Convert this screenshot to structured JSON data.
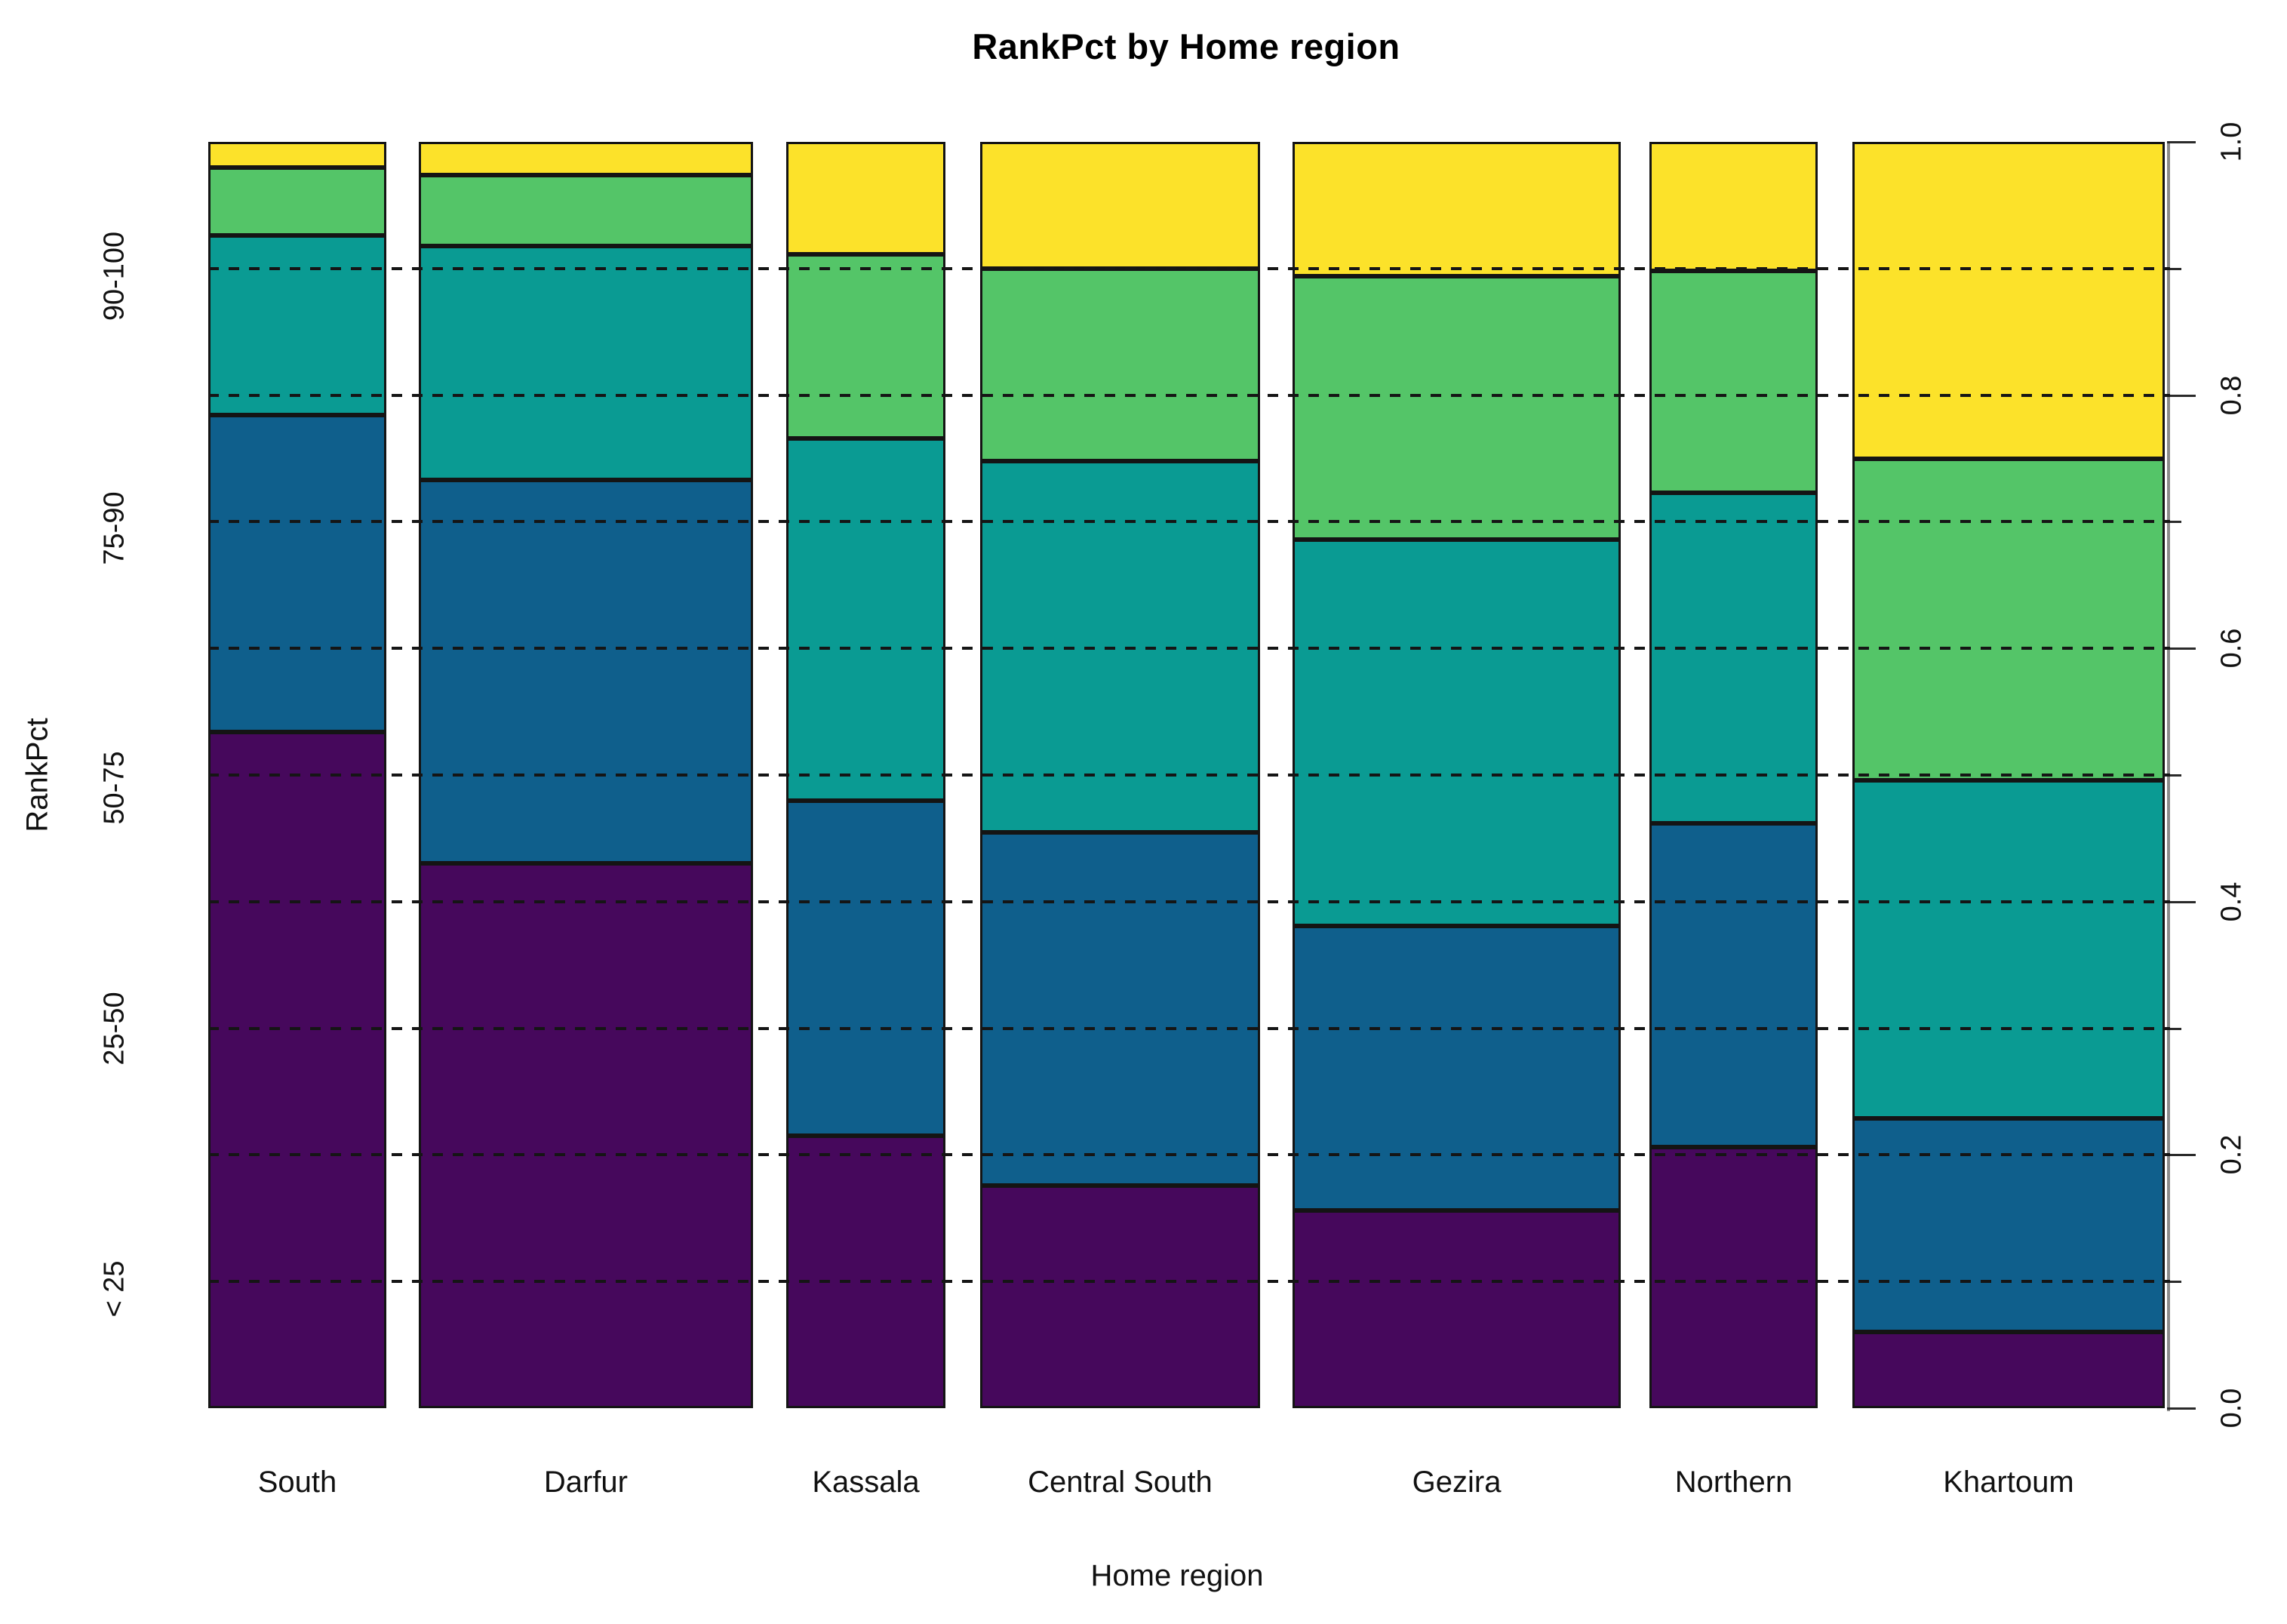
{
  "title": "RankPct by Home region",
  "x_axis_label": "Home region",
  "y_axis_label": "RankPct",
  "chart_data": {
    "type": "bar",
    "subtype": "spineplot-stacked-proportion",
    "title": "RankPct by Home region",
    "xlabel": "Home region",
    "ylabel": "RankPct",
    "ylim": [
      0.0,
      1.0
    ],
    "grid": "dashed horizontal lines every 0.1, drawn over bars",
    "legend_position": "none",
    "x_categories": [
      "South",
      "Darfur",
      "Kassala",
      "Central South",
      "Gezira",
      "Northern",
      "Khartoum"
    ],
    "stack_categories": [
      "< 25",
      "25-50",
      "50-75",
      "75-90",
      "90-100"
    ],
    "stack_colors": [
      "#46085C",
      "#0F5F8C",
      "#0A9B93",
      "#54C568",
      "#FCE22A"
    ],
    "bars": [
      {
        "region": "South",
        "left_pct": 0.0,
        "width_pct": 9.1,
        "segments": [
          0.534,
          0.25,
          0.142,
          0.054,
          0.02
        ]
      },
      {
        "region": "Darfur",
        "left_pct": 10.76,
        "width_pct": 17.08,
        "segments": [
          0.43,
          0.303,
          0.185,
          0.056,
          0.026
        ]
      },
      {
        "region": "Kassala",
        "left_pct": 29.54,
        "width_pct": 8.14,
        "segments": [
          0.215,
          0.265,
          0.286,
          0.145,
          0.089
        ]
      },
      {
        "region": "Central South",
        "left_pct": 39.45,
        "width_pct": 14.31,
        "segments": [
          0.176,
          0.279,
          0.293,
          0.152,
          0.1
        ]
      },
      {
        "region": "Gezira",
        "left_pct": 55.42,
        "width_pct": 16.78,
        "segments": [
          0.156,
          0.225,
          0.305,
          0.208,
          0.106
        ]
      },
      {
        "region": "Northern",
        "left_pct": 73.66,
        "width_pct": 8.6,
        "segments": [
          0.206,
          0.256,
          0.261,
          0.175,
          0.102
        ]
      },
      {
        "region": "Khartoum",
        "left_pct": 84.03,
        "width_pct": 15.97,
        "segments": [
          0.06,
          0.169,
          0.267,
          0.254,
          0.25
        ]
      }
    ],
    "left_axis_labels": [
      {
        "label": "90-100",
        "pos": 0.894
      },
      {
        "label": "75-90",
        "pos": 0.695
      },
      {
        "label": "50-75",
        "pos": 0.49
      },
      {
        "label": "25-50",
        "pos": 0.3
      },
      {
        "label": "< 25",
        "pos": 0.094
      }
    ],
    "right_axis_major_ticks": [
      {
        "label": "1.0",
        "pos": 1.0
      },
      {
        "label": "0.8",
        "pos": 0.8
      },
      {
        "label": "0.6",
        "pos": 0.6
      },
      {
        "label": "0.4",
        "pos": 0.4
      },
      {
        "label": "0.2",
        "pos": 0.2
      },
      {
        "label": "0.0",
        "pos": 0.0
      }
    ],
    "right_axis_minor_ticks": [
      0.9,
      0.7,
      0.5,
      0.3,
      0.1
    ],
    "gridline_positions": [
      0.9,
      0.8,
      0.7,
      0.6,
      0.5,
      0.4,
      0.3,
      0.2,
      0.1
    ],
    "grid_color": "#151515",
    "segment_border_color": "#141414",
    "axis_line_color": "#8A8A8A"
  }
}
